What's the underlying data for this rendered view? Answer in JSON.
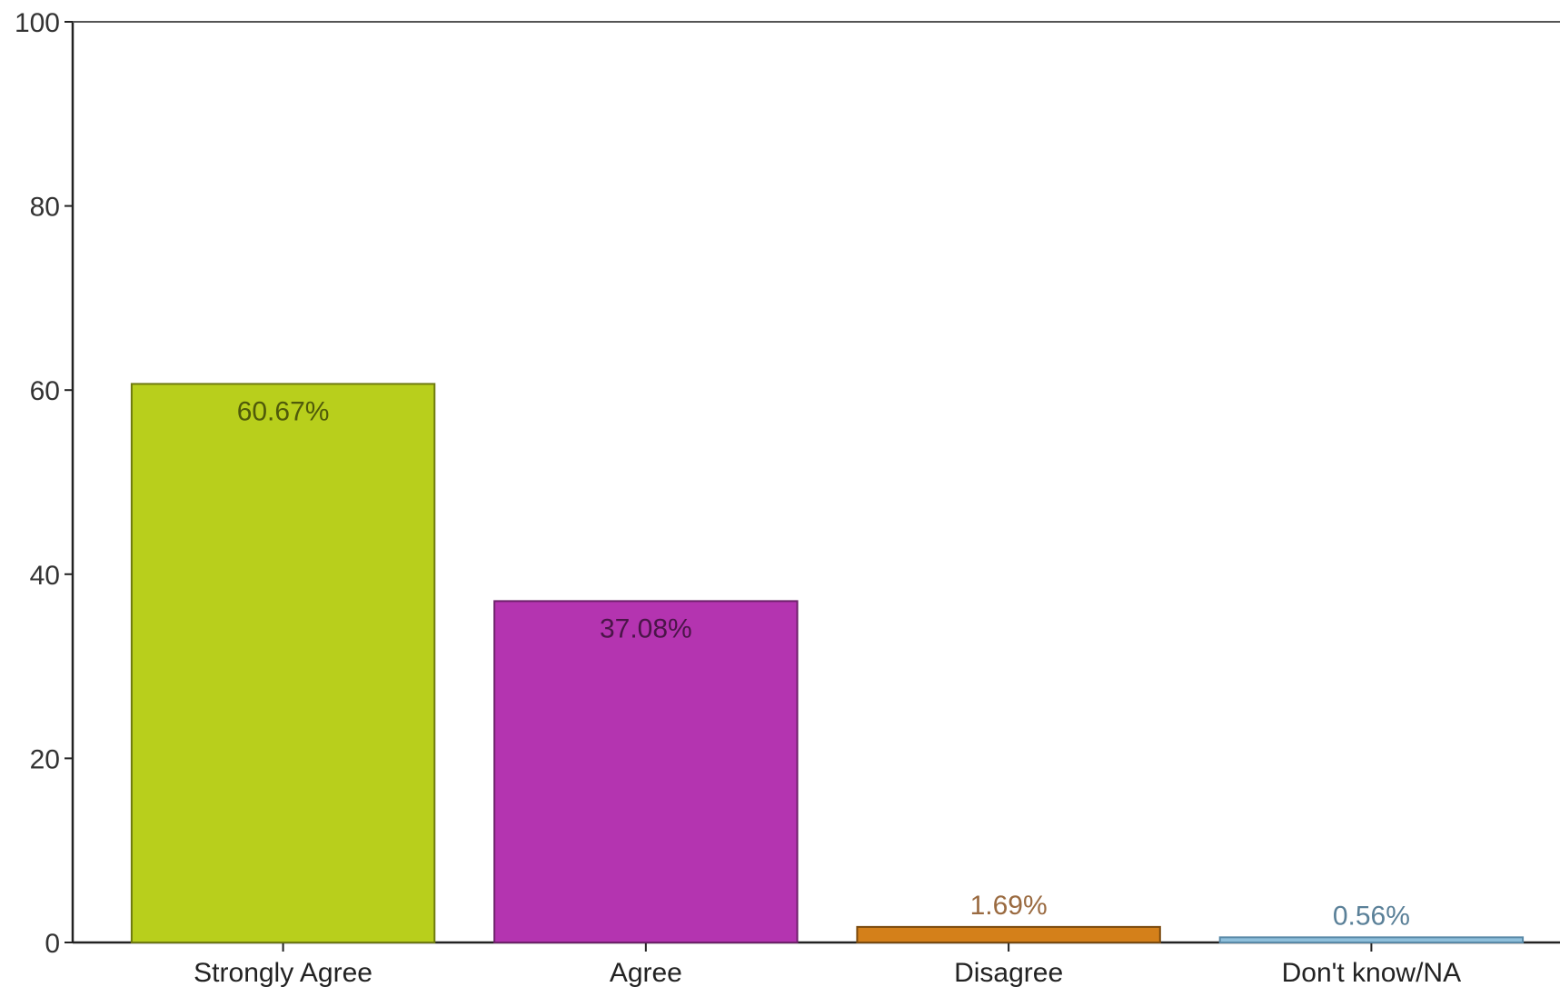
{
  "chart_data": {
    "type": "bar",
    "categories": [
      "Strongly Agree",
      "Agree",
      "Disagree",
      "Don't know/NA"
    ],
    "values": [
      60.67,
      37.08,
      1.69,
      0.56
    ],
    "data_labels": [
      "60.67%",
      "37.08%",
      "1.69%",
      "0.56%"
    ],
    "ylim": [
      0,
      100
    ],
    "yticks": [
      0,
      20,
      40,
      60,
      80,
      100
    ],
    "ytick_labels": [
      "0",
      "20",
      "40",
      "60",
      "80",
      "100"
    ],
    "colors": [
      "#b8cf1c",
      "#b434b0",
      "#d4801a",
      "#8fc0dc"
    ],
    "stroke_colors": [
      "#6e7a10",
      "#6e206b",
      "#7a4a0e",
      "#5a8aa8"
    ],
    "label_colors": [
      "#4f5a0a",
      "#4a1548",
      "#9a6a40",
      "#5a8098"
    ],
    "grid": false,
    "legend": "none"
  }
}
